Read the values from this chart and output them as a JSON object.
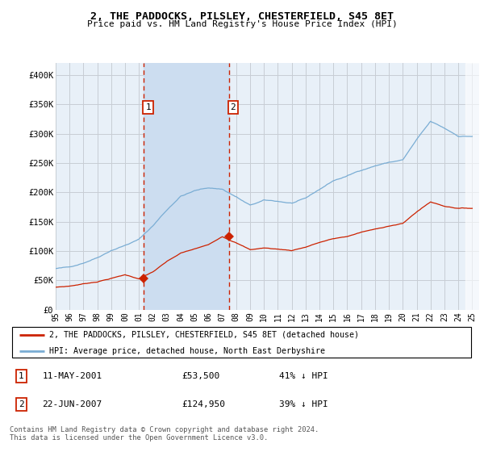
{
  "title": "2, THE PADDOCKS, PILSLEY, CHESTERFIELD, S45 8ET",
  "subtitle": "Price paid vs. HM Land Registry's House Price Index (HPI)",
  "ylabel_ticks": [
    "£0",
    "£50K",
    "£100K",
    "£150K",
    "£200K",
    "£250K",
    "£300K",
    "£350K",
    "£400K"
  ],
  "ytick_values": [
    0,
    50000,
    100000,
    150000,
    200000,
    250000,
    300000,
    350000,
    400000
  ],
  "ylim": [
    0,
    420000
  ],
  "xlim_start": 1995.0,
  "xlim_end": 2025.5,
  "sale1_x": 2001.36,
  "sale1_y": 53500,
  "sale1_label": "1",
  "sale1_date": "11-MAY-2001",
  "sale1_price": "£53,500",
  "sale1_pct": "41% ↓ HPI",
  "sale2_x": 2007.47,
  "sale2_y": 124950,
  "sale2_label": "2",
  "sale2_date": "22-JUN-2007",
  "sale2_price": "£124,950",
  "sale2_pct": "39% ↓ HPI",
  "hpi_color": "#7aadd4",
  "sold_color": "#cc2200",
  "plot_bg_color": "#e8f0f8",
  "grid_color": "#c8cdd4",
  "shade_between_color": "#ccddf0",
  "legend_line1": "2, THE PADDOCKS, PILSLEY, CHESTERFIELD, S45 8ET (detached house)",
  "legend_line2": "HPI: Average price, detached house, North East Derbyshire",
  "footer": "Contains HM Land Registry data © Crown copyright and database right 2024.\nThis data is licensed under the Open Government Licence v3.0."
}
